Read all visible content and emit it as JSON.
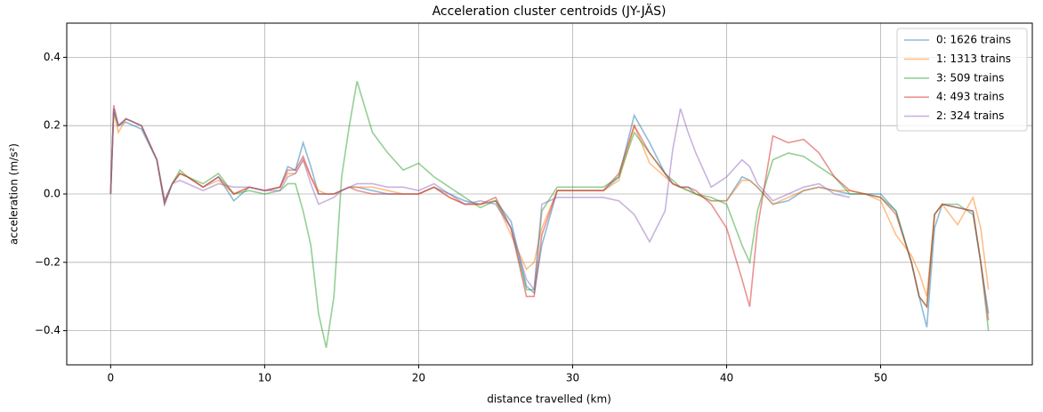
{
  "chart_data": {
    "type": "line",
    "title": "Acceleration cluster centroids (JY-JÄS)",
    "x_label": "distance travelled (km)",
    "y_label": "acceleration (m/s²)",
    "x": [
      0,
      0.2,
      0.5,
      1,
      2,
      3,
      3.5,
      4,
      4.5,
      5,
      6,
      7,
      8,
      9,
      10,
      11,
      11.5,
      12,
      12.5,
      13,
      13.5,
      14,
      14.5,
      15,
      15.5,
      16,
      17,
      18,
      19,
      20,
      21,
      22,
      23,
      24,
      25,
      26,
      27,
      27.5,
      28,
      29,
      30,
      32,
      33,
      34,
      35,
      36,
      36.5,
      37,
      37.5,
      38,
      39,
      40,
      41,
      41.5,
      42,
      43,
      44,
      45,
      46,
      47,
      48,
      49,
      50,
      51,
      52,
      52.5,
      53,
      53.5,
      54,
      55,
      56,
      56.5,
      57
    ],
    "series": [
      {
        "name": "0: 1626 trains",
        "color": "#1f77b4",
        "values": [
          0,
          0.25,
          0.2,
          0.21,
          0.19,
          0.1,
          -0.03,
          0.03,
          0.06,
          0.05,
          0.02,
          0.05,
          -0.02,
          0.02,
          0.01,
          0.02,
          0.08,
          0.07,
          0.15,
          0.08,
          0.0,
          0.0,
          0.0,
          0.01,
          0.02,
          0.02,
          0.01,
          0.0,
          0.0,
          0.0,
          0.02,
          0.0,
          -0.02,
          -0.03,
          -0.02,
          -0.08,
          -0.27,
          -0.29,
          -0.15,
          0.01,
          0.01,
          0.01,
          0.05,
          0.23,
          0.15,
          0.06,
          0.03,
          0.02,
          0.02,
          0.0,
          -0.02,
          -0.02,
          0.05,
          0.04,
          0.02,
          -0.03,
          -0.02,
          0.01,
          0.02,
          0.01,
          0.0,
          0.0,
          0.0,
          -0.05,
          -0.2,
          -0.3,
          -0.39,
          -0.1,
          -0.03,
          -0.04,
          -0.05,
          -0.2,
          -0.35
        ]
      },
      {
        "name": "1: 1313 trains",
        "color": "#ff7f0e",
        "values": [
          0,
          0.24,
          0.18,
          0.22,
          0.2,
          0.1,
          -0.02,
          0.03,
          0.06,
          0.05,
          0.02,
          0.04,
          0.0,
          0.02,
          0.01,
          0.02,
          0.06,
          0.06,
          0.1,
          0.05,
          0.01,
          0.0,
          0.0,
          0.01,
          0.02,
          0.02,
          0.02,
          0.01,
          0.0,
          0.0,
          0.02,
          -0.01,
          -0.03,
          -0.03,
          -0.02,
          -0.12,
          -0.22,
          -0.2,
          -0.1,
          0.01,
          0.01,
          0.01,
          0.04,
          0.2,
          0.09,
          0.05,
          0.03,
          0.02,
          0.01,
          0.0,
          -0.02,
          -0.02,
          0.04,
          0.04,
          0.02,
          -0.03,
          -0.01,
          0.01,
          0.02,
          0.01,
          0.01,
          0.0,
          -0.02,
          -0.12,
          -0.18,
          -0.23,
          -0.3,
          -0.06,
          -0.03,
          -0.09,
          -0.01,
          -0.1,
          -0.28
        ]
      },
      {
        "name": "3: 509 trains",
        "color": "#2ca02c",
        "values": [
          0,
          0.24,
          0.2,
          0.22,
          0.2,
          0.1,
          -0.02,
          0.03,
          0.07,
          0.05,
          0.03,
          0.06,
          0.0,
          0.01,
          0.0,
          0.01,
          0.03,
          0.03,
          -0.05,
          -0.15,
          -0.35,
          -0.45,
          -0.3,
          0.05,
          0.2,
          0.33,
          0.18,
          0.12,
          0.07,
          0.09,
          0.05,
          0.02,
          -0.01,
          -0.04,
          -0.02,
          -0.1,
          -0.28,
          -0.28,
          -0.05,
          0.02,
          0.02,
          0.02,
          0.05,
          0.18,
          0.12,
          0.06,
          0.04,
          0.02,
          0.01,
          0.0,
          -0.01,
          -0.03,
          -0.15,
          -0.2,
          -0.05,
          0.1,
          0.12,
          0.11,
          0.08,
          0.05,
          0.0,
          0.0,
          -0.01,
          -0.05,
          -0.2,
          -0.3,
          -0.33,
          -0.06,
          -0.03,
          -0.03,
          -0.06,
          -0.2,
          -0.4
        ]
      },
      {
        "name": "4: 493 trains",
        "color": "#d62728",
        "values": [
          0,
          0.26,
          0.2,
          0.22,
          0.2,
          0.1,
          -0.03,
          0.03,
          0.06,
          0.05,
          0.02,
          0.05,
          0.0,
          0.02,
          0.01,
          0.02,
          0.07,
          0.07,
          0.11,
          0.05,
          0.0,
          0.0,
          0.0,
          0.01,
          0.02,
          0.01,
          0.0,
          0.0,
          0.0,
          0.0,
          0.02,
          -0.01,
          -0.03,
          -0.03,
          -0.01,
          -0.1,
          -0.3,
          -0.3,
          -0.12,
          0.01,
          0.01,
          0.01,
          0.06,
          0.2,
          0.12,
          0.06,
          0.03,
          0.02,
          0.02,
          0.01,
          -0.03,
          -0.1,
          -0.25,
          -0.33,
          -0.1,
          0.17,
          0.15,
          0.16,
          0.12,
          0.05,
          0.01,
          0.0,
          -0.01,
          -0.06,
          -0.2,
          -0.3,
          -0.33,
          -0.06,
          -0.03,
          -0.04,
          -0.05,
          -0.2,
          -0.37
        ]
      },
      {
        "name": "2: 324 trains",
        "color": "#9467bd",
        "values": [
          0,
          0.25,
          0.2,
          0.22,
          0.2,
          0.1,
          -0.02,
          0.03,
          0.04,
          0.03,
          0.01,
          0.03,
          0.02,
          0.02,
          0.01,
          0.01,
          0.05,
          0.06,
          0.1,
          0.03,
          -0.03,
          -0.02,
          -0.01,
          0.01,
          0.02,
          0.03,
          0.03,
          0.02,
          0.02,
          0.01,
          0.03,
          0.0,
          -0.03,
          -0.02,
          -0.03,
          -0.1,
          -0.25,
          -0.28,
          -0.03,
          -0.01,
          -0.01,
          -0.01,
          -0.02,
          -0.06,
          -0.14,
          -0.05,
          0.13,
          0.25,
          0.18,
          0.12,
          0.02,
          0.05,
          0.1,
          0.08,
          0.03,
          -0.02,
          0.0,
          0.02,
          0.03,
          0.0,
          -0.01,
          null,
          null,
          null,
          null,
          null,
          null,
          null,
          null,
          null,
          null,
          null,
          null
        ]
      }
    ],
    "xlim": [
      -2.85,
      59.85
    ],
    "xticks": [
      0,
      10,
      20,
      30,
      40,
      50
    ],
    "ylim": [
      -0.5,
      0.5
    ],
    "yticks": [
      {
        "value": -0.4,
        "label": "−0.4"
      },
      {
        "value": -0.2,
        "label": "−0.2"
      },
      {
        "value": 0,
        "label": "0.0"
      },
      {
        "value": 0.2,
        "label": "0.2"
      },
      {
        "value": 0.4,
        "label": "0.4"
      }
    ],
    "grid": true,
    "legend": "upper-right",
    "line_opacity": 0.5
  }
}
